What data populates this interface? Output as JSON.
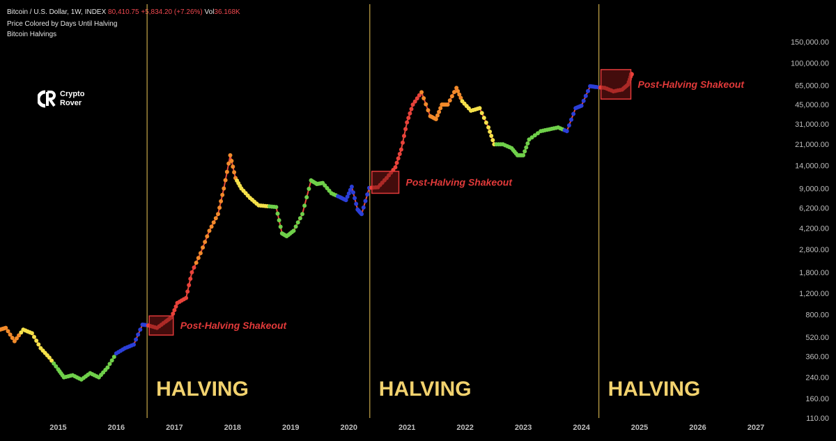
{
  "header": {
    "symbol": "Bitcoin / U.S. Dollar, 1W, INDEX",
    "last": "80,410.75",
    "change": "+5,834.20 (+7.26%)",
    "vol_label": "Vol",
    "vol_value": "36.168K",
    "indicator1": "Price Colored by Days Until Halving",
    "indicator2": "Bitcoin Halvings"
  },
  "logo": {
    "line1": "Crypto",
    "line2": "Rover"
  },
  "colors": {
    "background": "#000000",
    "halving_line": "#c8a84a",
    "halving_text": "#f2d26e",
    "annotation": "#e23a3a",
    "annotation_box": "#7a1616",
    "axis_text": "#bfbfbf",
    "price_line": "#e84b3c",
    "dot_colors": [
      "#f5e14a",
      "#f28a2a",
      "#e8423a",
      "#6fd04a",
      "#2b3fd8"
    ]
  },
  "chart_data": {
    "type": "line",
    "scale": "log",
    "xlim": [
      2014.0,
      2027.3
    ],
    "ylim": [
      110,
      150000
    ],
    "ylabels": [
      "150,000.00",
      "100,000.00",
      "65,000.00",
      "45,000.00",
      "31,000.00",
      "21,000.00",
      "14,000.00",
      "9,000.00",
      "6,200.00",
      "4,200.00",
      "2,800.00",
      "1,800.00",
      "1,200.00",
      "800.00",
      "520.00",
      "360.00",
      "240.00",
      "160.00",
      "110.00"
    ],
    "yticks": [
      150000,
      100000,
      65000,
      45000,
      31000,
      21000,
      14000,
      9000,
      6200,
      4200,
      2800,
      1800,
      1200,
      800,
      520,
      360,
      240,
      160,
      110
    ],
    "xlabels": [
      "2015",
      "2016",
      "2017",
      "2018",
      "2019",
      "2020",
      "2021",
      "2022",
      "2023",
      "2024",
      "2025",
      "2026",
      "2027"
    ],
    "xticks": [
      2015,
      2016,
      2017,
      2018,
      2019,
      2020,
      2021,
      2022,
      2023,
      2024,
      2025,
      2026,
      2027
    ],
    "series": [
      {
        "x": [
          2014.0,
          2014.1,
          2014.25,
          2014.4,
          2014.55,
          2014.7,
          2014.85,
          2015.0,
          2015.1,
          2015.25,
          2015.4,
          2015.55,
          2015.7,
          2015.85,
          2016.0,
          2016.15,
          2016.3,
          2016.45,
          2016.55,
          2016.7,
          2016.85,
          2016.95,
          2017.05,
          2017.2,
          2017.3,
          2017.45,
          2017.6,
          2017.75,
          2017.85,
          2017.96,
          2018.05,
          2018.15,
          2018.3,
          2018.45,
          2018.6,
          2018.75,
          2018.85,
          2018.93,
          2019.05,
          2019.2,
          2019.35,
          2019.45,
          2019.55,
          2019.7,
          2019.85,
          2019.95,
          2020.05,
          2020.15,
          2020.22,
          2020.35,
          2020.5,
          2020.65,
          2020.8,
          2020.9,
          2021.0,
          2021.1,
          2021.25,
          2021.4,
          2021.5,
          2021.6,
          2021.7,
          2021.85,
          2021.95,
          2022.1,
          2022.25,
          2022.4,
          2022.5,
          2022.65,
          2022.8,
          2022.9,
          2023.0,
          2023.1,
          2023.3,
          2023.45,
          2023.6,
          2023.75,
          2023.9,
          2024.0,
          2024.15,
          2024.25,
          2024.4,
          2024.55,
          2024.7,
          2024.8,
          2024.86
        ],
        "y": [
          600,
          620,
          480,
          600,
          560,
          420,
          350,
          280,
          240,
          250,
          230,
          260,
          240,
          290,
          380,
          420,
          450,
          660,
          650,
          620,
          700,
          760,
          1000,
          1100,
          1800,
          2600,
          4000,
          5500,
          9000,
          17000,
          11000,
          9000,
          7500,
          6500,
          6400,
          6300,
          3800,
          3600,
          4000,
          5500,
          10500,
          9800,
          10000,
          8200,
          7600,
          7200,
          9300,
          6000,
          5500,
          9100,
          9200,
          11000,
          13500,
          19000,
          32000,
          45000,
          57000,
          36000,
          34000,
          45000,
          45000,
          62000,
          48000,
          40000,
          42000,
          29000,
          21000,
          21000,
          19500,
          17000,
          17000,
          23000,
          27000,
          28000,
          29000,
          27000,
          42000,
          44000,
          64000,
          63000,
          62000,
          58000,
          60000,
          66000,
          80400
        ]
      }
    ],
    "halvings": [
      2016.53,
      2020.36,
      2024.3
    ],
    "halving_label": "HALVING",
    "shakeouts": [
      {
        "x0": 2016.53,
        "x1": 2016.98,
        "y0": 540,
        "y1": 780,
        "label": "Post-Halving Shakeout"
      },
      {
        "x0": 2020.36,
        "x1": 2020.86,
        "y0": 8200,
        "y1": 12500,
        "label": "Post-Halving Shakeout"
      },
      {
        "x0": 2024.3,
        "x1": 2024.85,
        "y0": 50000,
        "y1": 88000,
        "label": "Post-Halving Shakeout"
      }
    ]
  }
}
